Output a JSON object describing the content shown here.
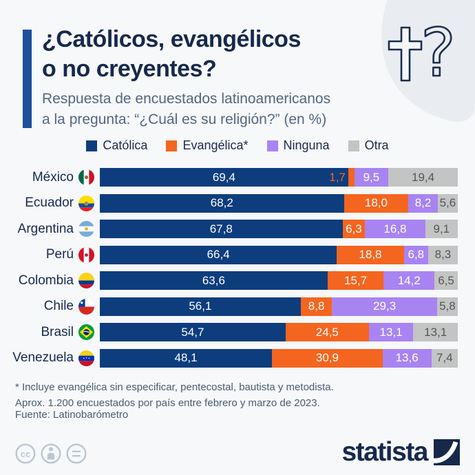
{
  "header": {
    "title_line1": "¿Católicos, evangélicos",
    "title_line2": "o no creyentes?",
    "subtitle_line1": "Respuesta de encuestados latinoamericanos",
    "subtitle_line2": "a la pregunta: “¿Cuál es su religión?” (en %)"
  },
  "legend": {
    "items": [
      {
        "label": "Católica",
        "color": "#0e3d7d"
      },
      {
        "label": "Evangélica*",
        "color": "#f4651f"
      },
      {
        "label": "Ninguna",
        "color": "#a884f2"
      },
      {
        "label": "Otra",
        "color": "#c3c4c4"
      }
    ]
  },
  "chart_data": {
    "type": "bar",
    "orientation": "horizontal",
    "stacked": true,
    "unit": "%",
    "series_names": [
      "Católica",
      "Evangélica*",
      "Ninguna",
      "Otra"
    ],
    "series_colors": [
      "#0e3d7d",
      "#f4651f",
      "#a884f2",
      "#c3c4c4"
    ],
    "rows": [
      {
        "country": "México",
        "flag": "mx",
        "values": [
          69.4,
          1.7,
          9.5,
          19.4
        ],
        "labels": [
          "69,4",
          "1,7",
          "9,5",
          "19,4"
        ]
      },
      {
        "country": "Ecuador",
        "flag": "ec",
        "values": [
          68.2,
          18.0,
          8.2,
          5.6
        ],
        "labels": [
          "68,2",
          "18,0",
          "8,2",
          "5,6"
        ]
      },
      {
        "country": "Argentina",
        "flag": "ar",
        "values": [
          67.8,
          6.3,
          16.8,
          9.1
        ],
        "labels": [
          "67,8",
          "6,3",
          "16,8",
          "9,1"
        ]
      },
      {
        "country": "Perú",
        "flag": "pe",
        "values": [
          66.4,
          18.8,
          6.8,
          8.3
        ],
        "labels": [
          "66,4",
          "18,8",
          "6,8",
          "8,3"
        ]
      },
      {
        "country": "Colombia",
        "flag": "co",
        "values": [
          63.6,
          15.7,
          14.2,
          6.5
        ],
        "labels": [
          "63,6",
          "15,7",
          "14,2",
          "6,5"
        ]
      },
      {
        "country": "Chile",
        "flag": "cl",
        "values": [
          56.1,
          8.8,
          29.3,
          5.8
        ],
        "labels": [
          "56,1",
          "8,8",
          "29,3",
          "5,8"
        ]
      },
      {
        "country": "Brasil",
        "flag": "br",
        "values": [
          54.7,
          24.5,
          13.1,
          13.1
        ],
        "labels": [
          "54,7",
          "24,5",
          "13,1",
          "13,1"
        ]
      },
      {
        "country": "Venezuela",
        "flag": "ve",
        "values": [
          48.1,
          30.9,
          13.6,
          7.4
        ],
        "labels": [
          "48,1",
          "30,9",
          "13,6",
          "7,4"
        ]
      }
    ]
  },
  "footnotes": {
    "line1": "* Incluye evangélica sin especificar, pentecostal, bautista y metodista.",
    "line2": "Aprox. 1.200 encuestados por país entre febrero y marzo de 2023."
  },
  "source": "Fuente: Latinobarómetro",
  "branding": {
    "logo_text": "statista"
  }
}
